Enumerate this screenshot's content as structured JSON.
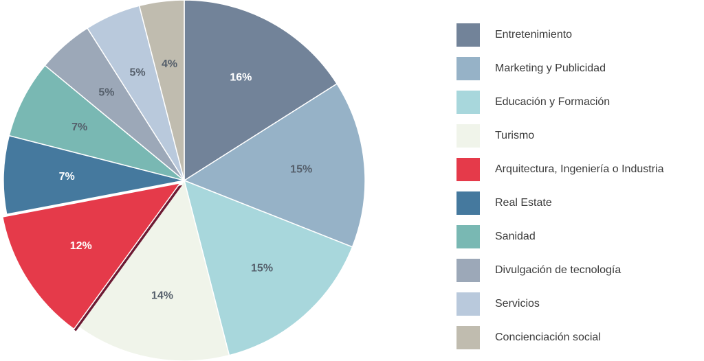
{
  "chart_data": {
    "type": "pie",
    "title": "",
    "legend_position": "right",
    "exploded_slice": "Arquitectura, Ingeniería o Industria",
    "slices": [
      {
        "label": "Entretenimiento",
        "value": 16,
        "display": "16%",
        "color": "#728399",
        "label_color": "#ffffff"
      },
      {
        "label": "Marketing y Publicidad",
        "value": 15,
        "display": "15%",
        "color": "#96b2c7",
        "label_color": "#555f6b"
      },
      {
        "label": "Educación y Formación",
        "value": 15,
        "display": "15%",
        "color": "#a8d7dc",
        "label_color": "#555f6b"
      },
      {
        "label": "Turismo",
        "value": 14,
        "display": "14%",
        "color": "#f0f4ea",
        "label_color": "#555f6b"
      },
      {
        "label": "Arquitectura, Ingeniería o Industria",
        "value": 12,
        "display": "12%",
        "color": "#e53a4a",
        "label_color": "#ffffff"
      },
      {
        "label": "Real Estate",
        "value": 7,
        "display": "7%",
        "color": "#45799e",
        "label_color": "#ffffff"
      },
      {
        "label": "Sanidad",
        "value": 7,
        "display": "7%",
        "color": "#79b8b3",
        "label_color": "#555f6b"
      },
      {
        "label": "Divulgación de tecnología",
        "value": 5,
        "display": "5%",
        "color": "#9ca8b8",
        "label_color": "#555f6b"
      },
      {
        "label": "Servicios",
        "value": 5,
        "display": "5%",
        "color": "#b9c9dc",
        "label_color": "#555f6b"
      },
      {
        "label": "Concienciación social",
        "value": 4,
        "display": "4%",
        "color": "#c0bcaf",
        "label_color": "#555f6b"
      }
    ]
  }
}
